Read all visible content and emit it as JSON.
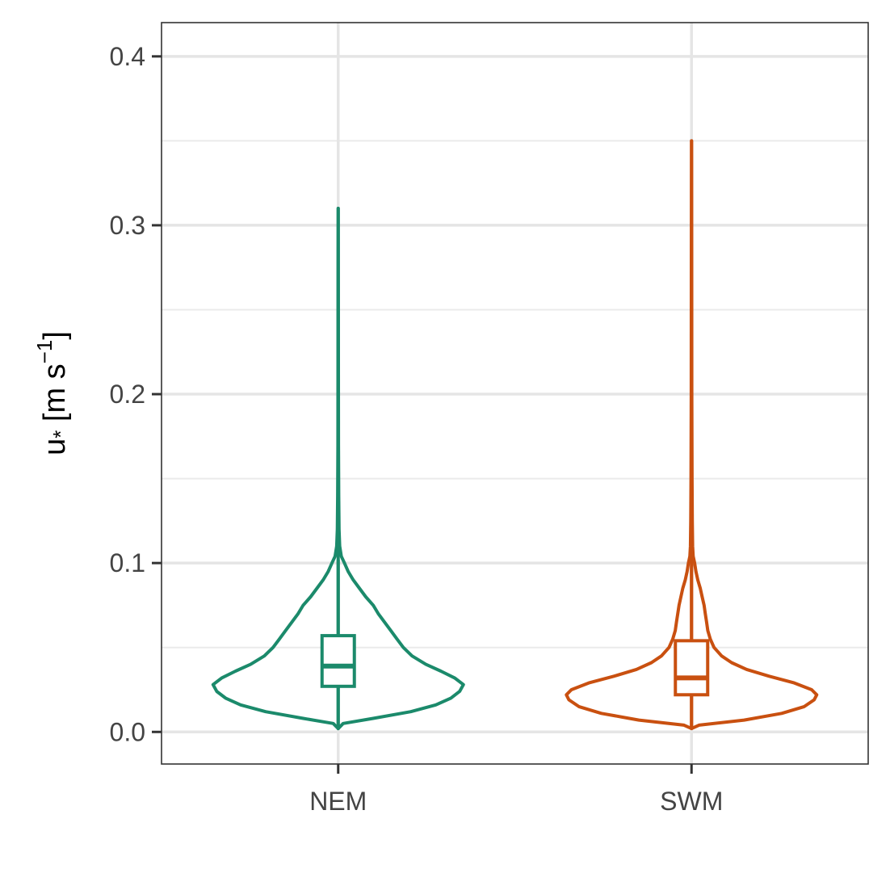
{
  "chart_data": {
    "type": "violin",
    "xlabel": "",
    "ylabel": {
      "main": "u",
      "sub": "*",
      "units_open": " [m s",
      "units_sup": "−1",
      "units_close": "]"
    },
    "ylim": [
      -0.019,
      0.42
    ],
    "yticks": [
      0.0,
      0.1,
      0.2,
      0.3,
      0.4
    ],
    "ytick_labels": [
      "0.0",
      "0.1",
      "0.2",
      "0.3",
      "0.4"
    ],
    "y_minor_gridlines": [
      0.05,
      0.15,
      0.25,
      0.35
    ],
    "categories": [
      "NEM",
      "SWM"
    ],
    "grid": true,
    "theme": "bw",
    "series": [
      {
        "category": "NEM",
        "color": "#1b8a6b",
        "box": {
          "q1": 0.027,
          "median": 0.039,
          "q3": 0.057,
          "whisker_low": 0.002,
          "whisker_high": 0.102
        },
        "violin_min": 0.002,
        "violin_max": 0.31,
        "density": [
          [
            0.002,
            0.0
          ],
          [
            0.005,
            0.04
          ],
          [
            0.008,
            0.28
          ],
          [
            0.012,
            0.58
          ],
          [
            0.016,
            0.78
          ],
          [
            0.02,
            0.9
          ],
          [
            0.024,
            0.97
          ],
          [
            0.028,
            1.0
          ],
          [
            0.032,
            0.93
          ],
          [
            0.036,
            0.82
          ],
          [
            0.04,
            0.7
          ],
          [
            0.045,
            0.59
          ],
          [
            0.05,
            0.52
          ],
          [
            0.055,
            0.47
          ],
          [
            0.06,
            0.42
          ],
          [
            0.065,
            0.37
          ],
          [
            0.07,
            0.32
          ],
          [
            0.075,
            0.28
          ],
          [
            0.08,
            0.22
          ],
          [
            0.085,
            0.17
          ],
          [
            0.09,
            0.12
          ],
          [
            0.095,
            0.08
          ],
          [
            0.1,
            0.05
          ],
          [
            0.104,
            0.025
          ],
          [
            0.11,
            0.012
          ],
          [
            0.12,
            0.007
          ],
          [
            0.14,
            0.004
          ],
          [
            0.17,
            0.0025
          ],
          [
            0.22,
            0.0015
          ],
          [
            0.27,
            0.001
          ],
          [
            0.31,
            0.0
          ]
        ]
      },
      {
        "category": "SWM",
        "color": "#c95010",
        "box": {
          "q1": 0.022,
          "median": 0.032,
          "q3": 0.054,
          "whisker_low": 0.002,
          "whisker_high": 0.102
        },
        "violin_min": 0.002,
        "violin_max": 0.35,
        "density": [
          [
            0.002,
            0.0
          ],
          [
            0.004,
            0.06
          ],
          [
            0.007,
            0.42
          ],
          [
            0.011,
            0.72
          ],
          [
            0.015,
            0.9
          ],
          [
            0.019,
            0.98
          ],
          [
            0.022,
            1.0
          ],
          [
            0.025,
            0.96
          ],
          [
            0.029,
            0.82
          ],
          [
            0.033,
            0.62
          ],
          [
            0.037,
            0.44
          ],
          [
            0.041,
            0.32
          ],
          [
            0.045,
            0.24
          ],
          [
            0.05,
            0.18
          ],
          [
            0.055,
            0.15
          ],
          [
            0.06,
            0.13
          ],
          [
            0.065,
            0.12
          ],
          [
            0.07,
            0.11
          ],
          [
            0.075,
            0.1
          ],
          [
            0.08,
            0.085
          ],
          [
            0.085,
            0.07
          ],
          [
            0.09,
            0.05
          ],
          [
            0.095,
            0.035
          ],
          [
            0.1,
            0.025
          ],
          [
            0.104,
            0.013
          ],
          [
            0.11,
            0.009
          ],
          [
            0.125,
            0.006
          ],
          [
            0.15,
            0.004
          ],
          [
            0.2,
            0.0025
          ],
          [
            0.28,
            0.0015
          ],
          [
            0.35,
            0.0
          ]
        ]
      }
    ]
  }
}
